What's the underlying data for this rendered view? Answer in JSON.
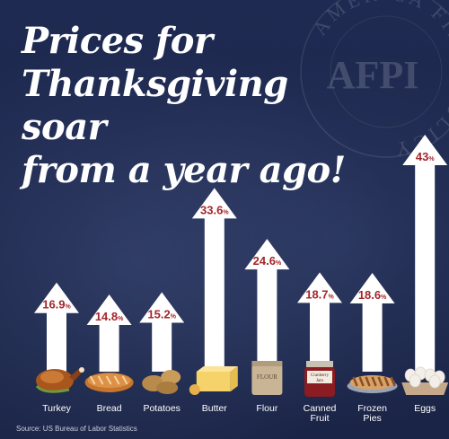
{
  "title": [
    "Prices for",
    "Thanksgiving soar",
    "from a year ago!"
  ],
  "watermark": {
    "text": "AMERICA FIRST POLICY",
    "logo": "AFPI"
  },
  "source": "Source: US Bureau of Labor Statistics",
  "colors": {
    "background": "#1b2548",
    "arrow": "#ffffff",
    "value_text": "#a3262a",
    "label_text": "#ffffff"
  },
  "chart_data": {
    "type": "bar",
    "title": "Prices for Thanksgiving soar from a year ago!",
    "categories": [
      "Turkey",
      "Bread",
      "Potatoes",
      "Butter",
      "Flour",
      "Canned Fruit",
      "Frozen Pies",
      "Eggs"
    ],
    "labels_display": [
      [
        "Turkey"
      ],
      [
        "Bread"
      ],
      [
        "Potatoes"
      ],
      [
        "Butter"
      ],
      [
        "Flour"
      ],
      [
        "Canned",
        "Fruit"
      ],
      [
        "Frozen",
        "Pies"
      ],
      [
        "Eggs"
      ]
    ],
    "values": [
      16.9,
      14.8,
      15.2,
      33.6,
      24.6,
      18.7,
      18.6,
      43
    ],
    "value_labels": [
      "16.9",
      "14.8",
      "15.2",
      "33.6",
      "24.6",
      "18.7",
      "18.6",
      "43"
    ],
    "unit": "%",
    "icons": [
      "turkey-icon",
      "bread-icon",
      "potatoes-icon",
      "butter-icon",
      "flour-icon",
      "canned-fruit-icon",
      "frozen-pies-icon",
      "eggs-icon"
    ],
    "icon_labels": {
      "flour": "FLOUR",
      "jam": [
        "Cranberry",
        "Jam"
      ]
    },
    "xlabel": "",
    "ylabel": "",
    "ylim": [
      0,
      43
    ],
    "grid": false
  }
}
